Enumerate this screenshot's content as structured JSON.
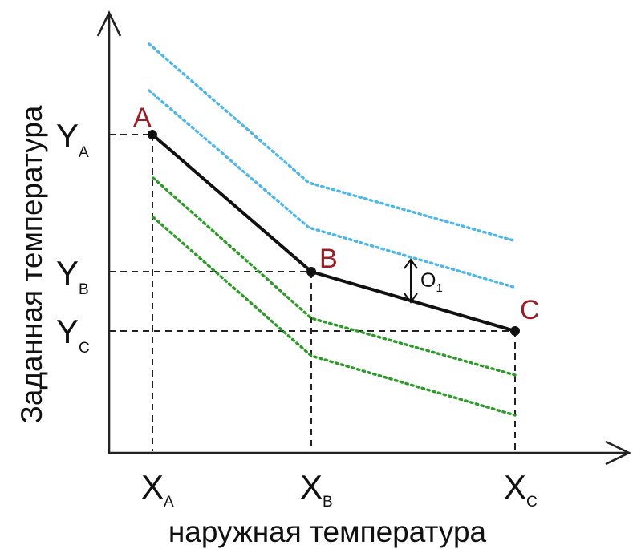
{
  "axes": {
    "x_title": "наружная температура",
    "y_title": "Заданная температура"
  },
  "points": [
    {
      "name": "A",
      "x_label": "X",
      "x_sub": "A",
      "y_label": "Y",
      "y_sub": "A"
    },
    {
      "name": "B",
      "x_label": "X",
      "x_sub": "B",
      "y_label": "Y",
      "y_sub": "B"
    },
    {
      "name": "C",
      "x_label": "X",
      "x_sub": "C",
      "y_label": "Y",
      "y_sub": "C"
    }
  ],
  "offset": {
    "label": "O",
    "sub": "1"
  },
  "colors": {
    "main_curve": "#111111",
    "point_labels": "#9b1d25",
    "upper_offset_curves": "#4fb6ea",
    "lower_offset_curves": "#2f9a2a"
  }
}
